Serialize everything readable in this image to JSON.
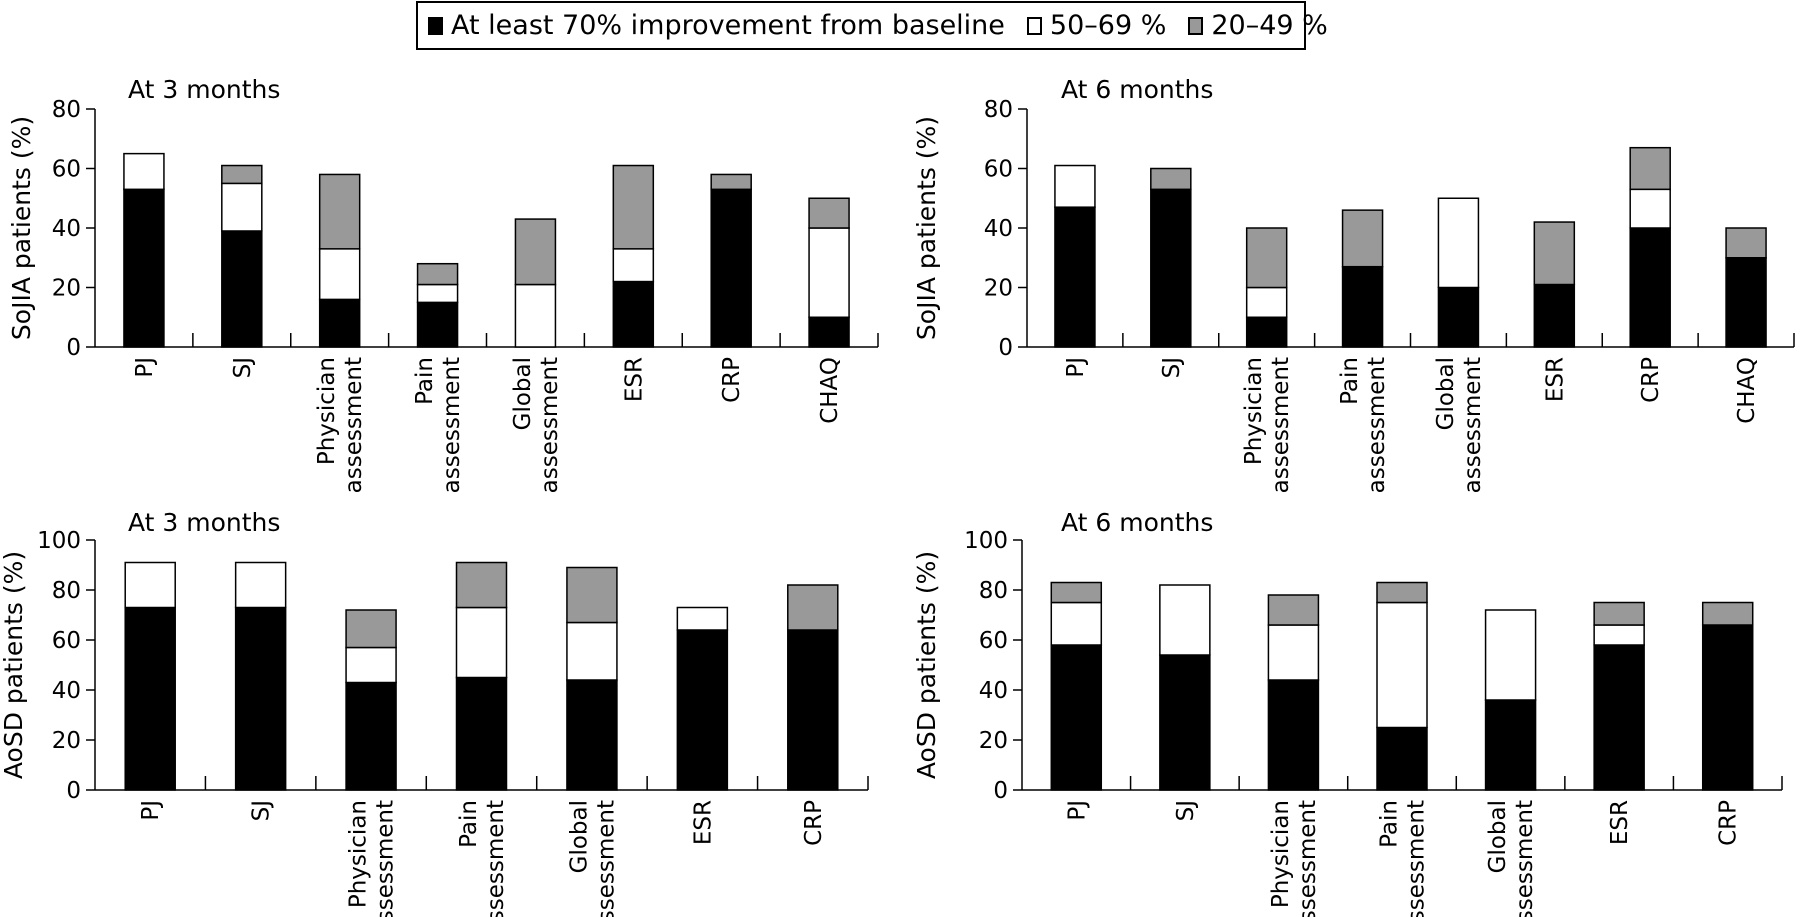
{
  "legend": [
    {
      "label": "At least 70% improvement from baseline",
      "color": "#000000"
    },
    {
      "label": "50–69 %",
      "color": "#ffffff"
    },
    {
      "label": "20–49 %",
      "color": "#999999"
    }
  ],
  "chart_data": [
    {
      "type": "bar",
      "stacked": true,
      "title": "At 3 months",
      "ylabel": "SoJIA patients (%)",
      "ylim": [
        0,
        80
      ],
      "yticks": [
        0,
        20,
        40,
        60,
        80
      ],
      "categories": [
        "PJ",
        "SJ",
        "Physician\nassessment",
        "Pain\nassessment",
        "Global\nassessment",
        "ESR",
        "CRP",
        "CHAQ"
      ],
      "series": [
        {
          "name": "At least 70% improvement from baseline",
          "color": "#000000",
          "values": [
            53,
            39,
            16,
            15,
            0,
            22,
            53,
            10
          ]
        },
        {
          "name": "50–69 %",
          "color": "#ffffff",
          "values": [
            12,
            16,
            17,
            6,
            21,
            11,
            0,
            30
          ]
        },
        {
          "name": "20–49 %",
          "color": "#999999",
          "values": [
            0,
            6,
            25,
            7,
            22,
            28,
            5,
            10
          ]
        }
      ]
    },
    {
      "type": "bar",
      "stacked": true,
      "title": "At 6 months",
      "ylabel": "SoJIA patients (%)",
      "ylim": [
        0,
        80
      ],
      "yticks": [
        0,
        20,
        40,
        60,
        80
      ],
      "categories": [
        "PJ",
        "SJ",
        "Physician\nassessment",
        "Pain\nassessment",
        "Global\nassessment",
        "ESR",
        "CRP",
        "CHAQ"
      ],
      "series": [
        {
          "name": "At least 70% improvement from baseline",
          "color": "#000000",
          "values": [
            47,
            53,
            10,
            27,
            20,
            21,
            40,
            30
          ]
        },
        {
          "name": "50–69 %",
          "color": "#ffffff",
          "values": [
            14,
            0,
            10,
            0,
            30,
            0,
            13,
            0
          ]
        },
        {
          "name": "20–49 %",
          "color": "#999999",
          "values": [
            0,
            7,
            20,
            19,
            0,
            21,
            14,
            10
          ]
        }
      ]
    },
    {
      "type": "bar",
      "stacked": true,
      "title": "At 3 months",
      "ylabel": "AoSD patients (%)",
      "ylim": [
        0,
        100
      ],
      "yticks": [
        0,
        20,
        40,
        60,
        80,
        100
      ],
      "categories": [
        "PJ",
        "SJ",
        "Physician\nassessment",
        "Pain\nassessment",
        "Global\nassessment",
        "ESR",
        "CRP"
      ],
      "series": [
        {
          "name": "At least 70% improvement from baseline",
          "color": "#000000",
          "values": [
            73,
            73,
            43,
            45,
            44,
            64,
            64
          ]
        },
        {
          "name": "50–69 %",
          "color": "#ffffff",
          "values": [
            18,
            18,
            14,
            28,
            23,
            9,
            0
          ]
        },
        {
          "name": "20–49 %",
          "color": "#999999",
          "values": [
            0,
            0,
            15,
            18,
            22,
            0,
            18
          ]
        }
      ]
    },
    {
      "type": "bar",
      "stacked": true,
      "title": "At 6 months",
      "ylabel": "AoSD patients (%)",
      "ylim": [
        0,
        100
      ],
      "yticks": [
        0,
        20,
        40,
        60,
        80,
        100
      ],
      "categories": [
        "PJ",
        "SJ",
        "Physician\nassessment",
        "Pain\nassessment",
        "Global\nassessment",
        "ESR",
        "CRP"
      ],
      "series": [
        {
          "name": "At least 70% improvement from baseline",
          "color": "#000000",
          "values": [
            58,
            54,
            44,
            25,
            36,
            58,
            66
          ]
        },
        {
          "name": "50–69 %",
          "color": "#ffffff",
          "values": [
            17,
            28,
            22,
            50,
            36,
            8,
            0
          ]
        },
        {
          "name": "20–49 %",
          "color": "#999999",
          "values": [
            8,
            0,
            12,
            8,
            0,
            9,
            9
          ]
        }
      ]
    }
  ]
}
